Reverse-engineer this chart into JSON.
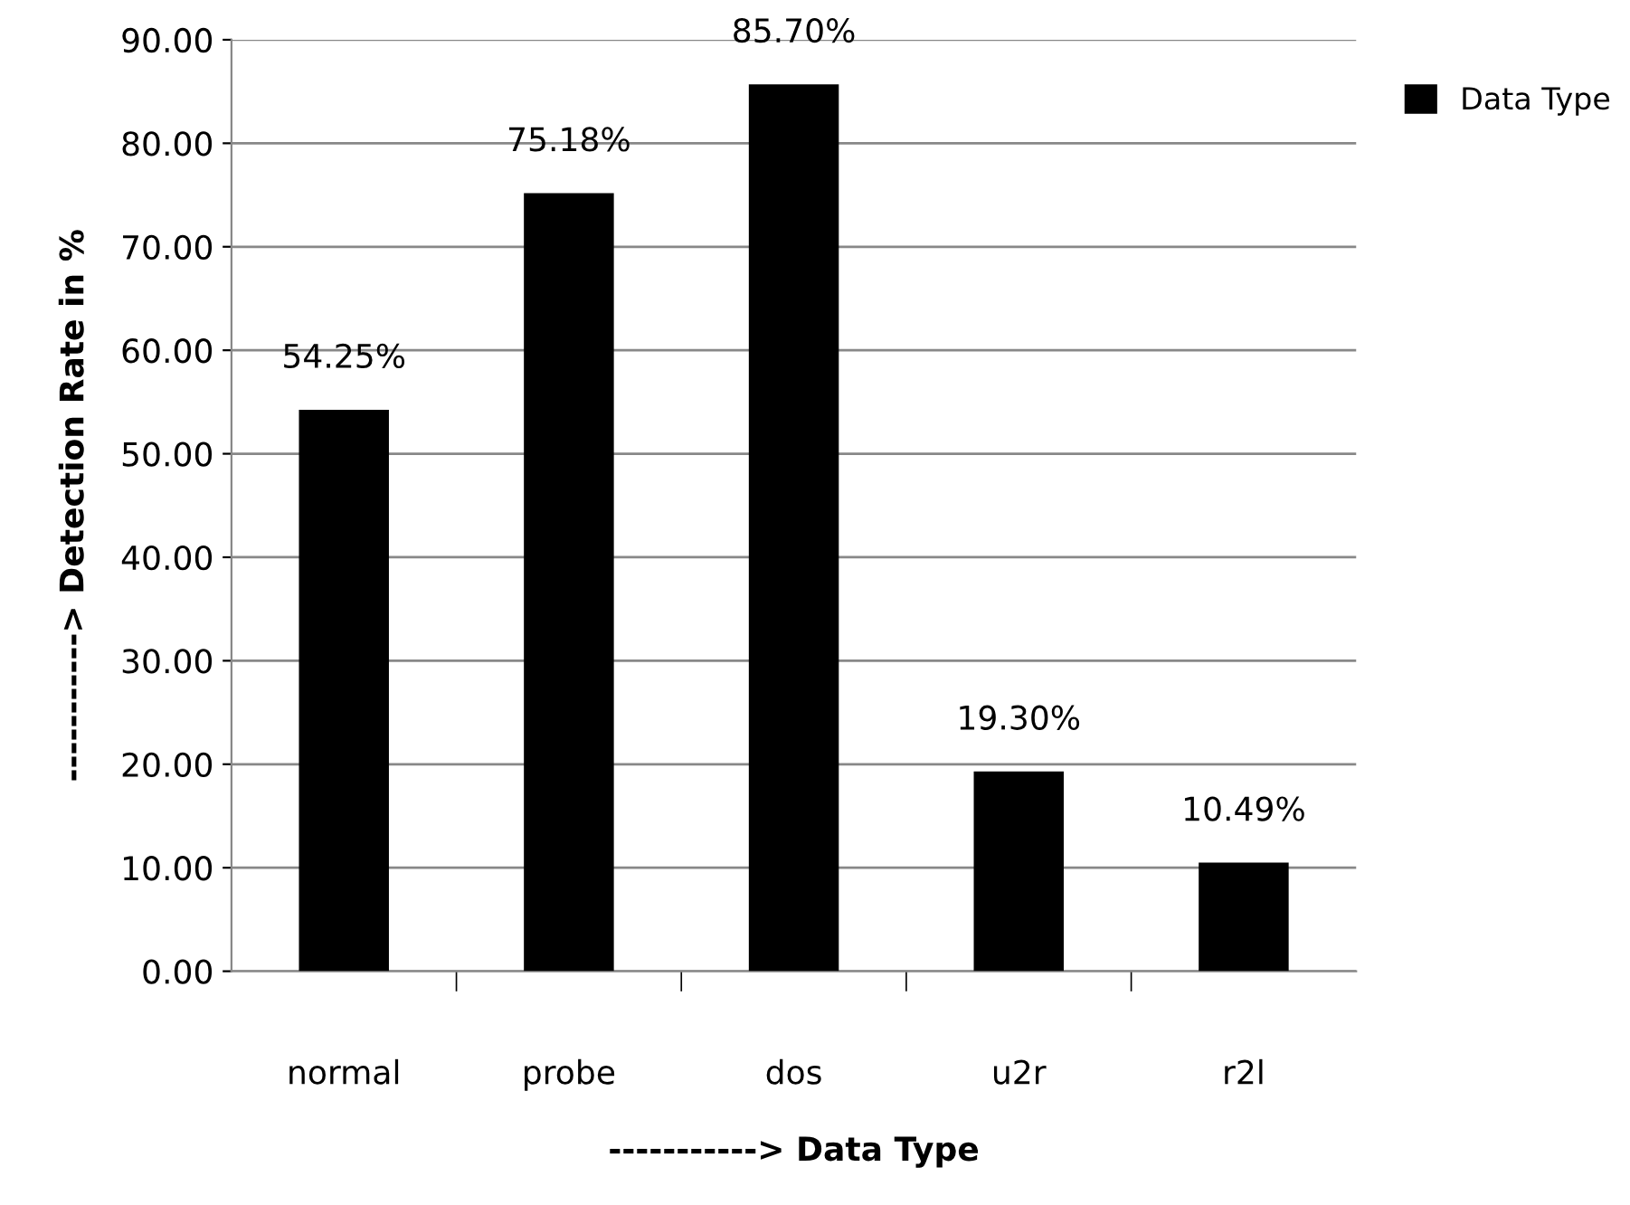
{
  "chart_data": {
    "type": "bar",
    "xlabel": "-----------> Data Type",
    "ylabel": "-----------> Detection Rate in %",
    "categories": [
      "normal",
      "probe",
      "dos",
      "u2r",
      "r2l"
    ],
    "series": [
      {
        "name": "Data Type",
        "color": "#000000",
        "values": [
          54.25,
          75.18,
          85.7,
          19.3,
          10.49
        ],
        "value_labels": [
          "54.25%",
          "75.18%",
          "85.70%",
          "19.30%",
          "10.49%"
        ]
      }
    ],
    "ylim": [
      0,
      90
    ],
    "yticks": [
      {
        "value": 0,
        "label": "0.00"
      },
      {
        "value": 10,
        "label": "10.00"
      },
      {
        "value": 20,
        "label": "20.00"
      },
      {
        "value": 30,
        "label": "30.00"
      },
      {
        "value": 40,
        "label": "40.00"
      },
      {
        "value": 50,
        "label": "50.00"
      },
      {
        "value": 60,
        "label": "60.00"
      },
      {
        "value": 70,
        "label": "70.00"
      },
      {
        "value": 80,
        "label": "80.00"
      },
      {
        "value": 90,
        "label": "90.00"
      }
    ],
    "grid": "y",
    "legend": "right"
  }
}
